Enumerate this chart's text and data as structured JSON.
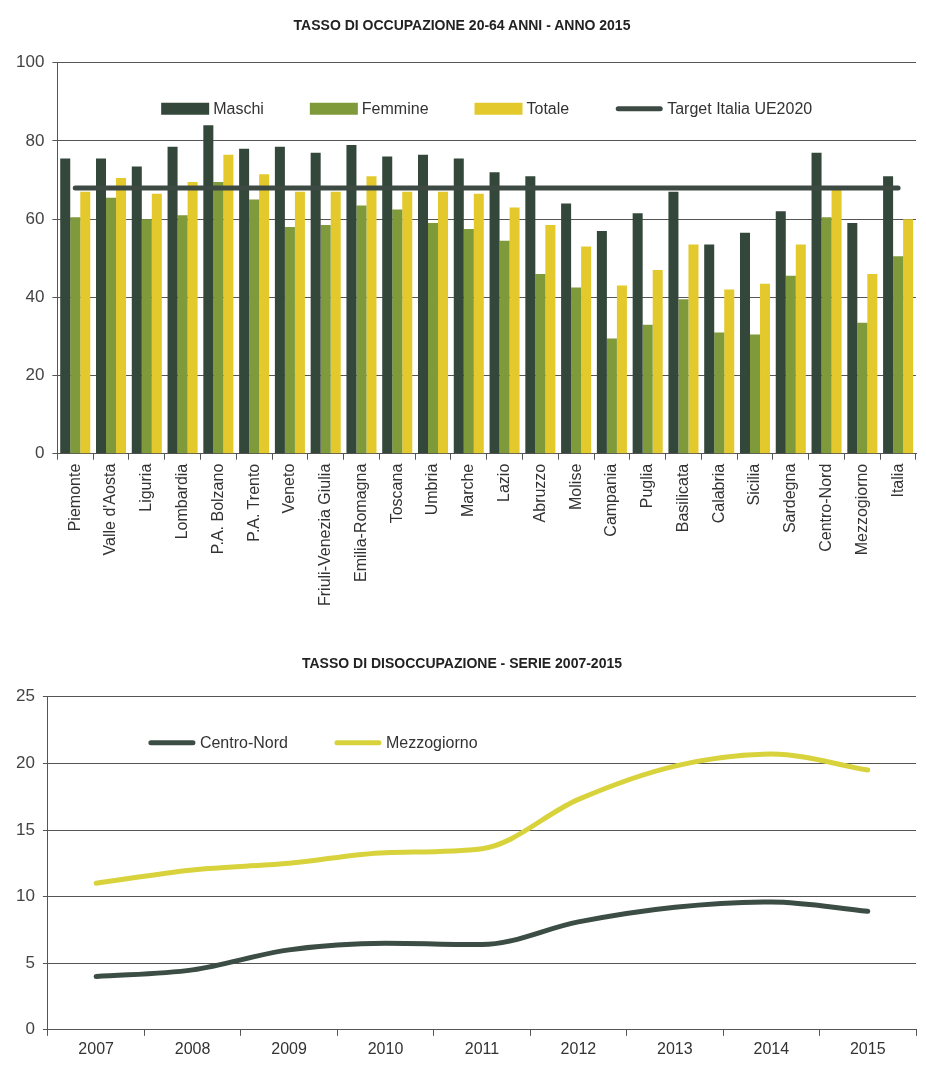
{
  "chart_data": [
    {
      "type": "bar",
      "title": "TASSO DI OCCUPAZIONE 20-64 ANNI - ANNO 2015",
      "categories": [
        "Piemonte",
        "Valle d'Aosta",
        "Liguria",
        "Lombardia",
        "P.A. Bolzano",
        "P.A. Trento",
        "Veneto",
        "Friuli-Venezia Giulia",
        "Emilia-Romagna",
        "Toscana",
        "Umbria",
        "Marche",
        "Lazio",
        "Abruzzo",
        "Molise",
        "Campania",
        "Puglia",
        "Basilicata",
        "Calabria",
        "Sicilia",
        "Sardegna",
        "Centro-Nord",
        "Mezzogiorno",
        "Italia"
      ],
      "series": [
        {
          "name": "Maschi",
          "color": "#34473b",
          "values": [
            75.5,
            75.5,
            73.5,
            78.5,
            84,
            78,
            78.5,
            77,
            79,
            76,
            76.5,
            75.5,
            72,
            71,
            64,
            57,
            61.5,
            67,
            53.5,
            56.5,
            62,
            77,
            59,
            71
          ]
        },
        {
          "name": "Femmine",
          "color": "#7f9a3a",
          "values": [
            60.5,
            65.5,
            60,
            61,
            69.5,
            65,
            58,
            58.5,
            63.5,
            62.5,
            59,
            57.5,
            54.5,
            46,
            42.5,
            29.5,
            33,
            39.5,
            31,
            30.5,
            45.5,
            60.5,
            33.5,
            50.5
          ]
        },
        {
          "name": "Totale",
          "color": "#e3c92c",
          "values": [
            67,
            70.5,
            66.5,
            69.5,
            76.5,
            71.5,
            67,
            67,
            71,
            67,
            67,
            66.5,
            63,
            58.5,
            53,
            43,
            47,
            53.5,
            42,
            43.5,
            53.5,
            67.5,
            46,
            60
          ]
        },
        {
          "name": "Target Italia UE2020",
          "type": "line",
          "color": "#3d4a44",
          "values": [
            68,
            68,
            68,
            68,
            68,
            68,
            68,
            68,
            68,
            68,
            68,
            68,
            68,
            68,
            68,
            68,
            68,
            68,
            68,
            68,
            68,
            68,
            68,
            68
          ]
        }
      ],
      "ylim": [
        0,
        100
      ],
      "yticks": [
        0,
        20,
        40,
        60,
        80,
        100
      ],
      "grid": "y",
      "legend": "top",
      "marker": "none"
    },
    {
      "type": "line",
      "title": "TASSO DI DISOCCUPAZIONE - SERIE 2007-2015",
      "categories": [
        "2007",
        "2008",
        "2009",
        "2010",
        "2011",
        "2012",
        "2013",
        "2014",
        "2015"
      ],
      "series": [
        {
          "name": "Centro-Nord",
          "color": "#3b4d44",
          "values": [
            4,
            4.5,
            6,
            6.5,
            6.4,
            8.1,
            9.2,
            9.6,
            8.9
          ]
        },
        {
          "name": "Mezzogiorno",
          "color": "#d8d33c",
          "values": [
            11,
            12,
            12.5,
            13.3,
            13.6,
            17.3,
            19.8,
            20.7,
            19.5
          ]
        }
      ],
      "ylim": [
        0,
        25
      ],
      "yticks": [
        0,
        5,
        10,
        15,
        20,
        25
      ],
      "grid": "y",
      "legend": "top left",
      "marker": "none"
    }
  ]
}
